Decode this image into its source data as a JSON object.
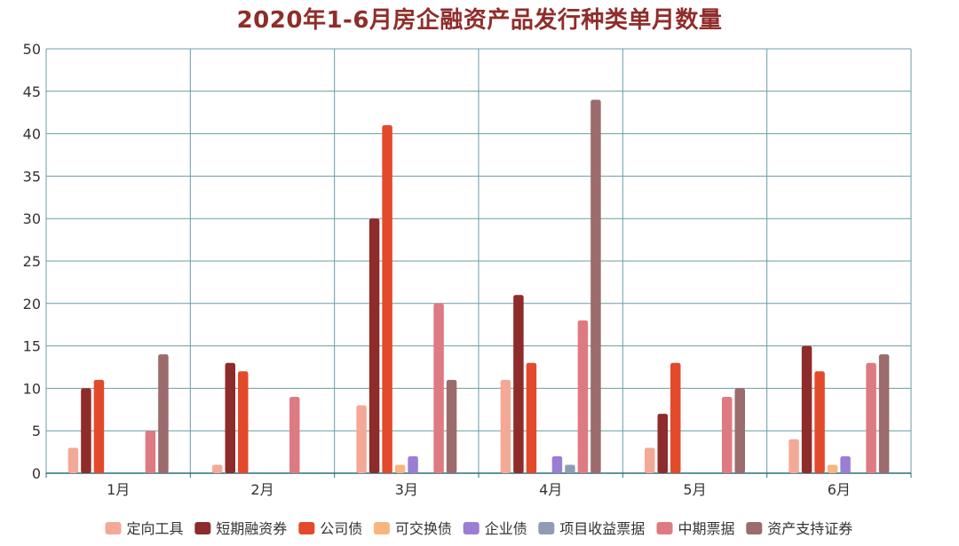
{
  "chart_data": {
    "type": "bar",
    "title": "2020年1-6月房企融资产品发行种类单月数量",
    "xlabel": "",
    "ylabel": "",
    "ylim": [
      0,
      50
    ],
    "yticks": [
      0,
      5,
      10,
      15,
      20,
      25,
      30,
      35,
      40,
      45,
      50
    ],
    "categories": [
      "1月",
      "2月",
      "3月",
      "4月",
      "5月",
      "6月"
    ],
    "grid": true,
    "legend_position": "bottom",
    "series": [
      {
        "name": "定向工具",
        "color": "#f4a996",
        "values": [
          3,
          1,
          8,
          11,
          3,
          4
        ]
      },
      {
        "name": "短期融资券",
        "color": "#8e2b2b",
        "values": [
          10,
          13,
          30,
          21,
          7,
          15
        ]
      },
      {
        "name": "公司债",
        "color": "#e34a2b",
        "values": [
          11,
          12,
          41,
          13,
          13,
          12
        ]
      },
      {
        "name": "可交换债",
        "color": "#f9b57f",
        "values": [
          0,
          0,
          1,
          0,
          0,
          1
        ]
      },
      {
        "name": "企业债",
        "color": "#9b7ed3",
        "values": [
          0,
          0,
          2,
          2,
          0,
          2
        ]
      },
      {
        "name": "项目收益票据",
        "color": "#8f9cb3",
        "values": [
          0,
          0,
          0,
          1,
          0,
          0
        ]
      },
      {
        "name": "中期票据",
        "color": "#de7a82",
        "values": [
          5,
          9,
          20,
          18,
          9,
          13
        ]
      },
      {
        "name": "资产支持证券",
        "color": "#9c6b6b",
        "values": [
          14,
          0,
          11,
          44,
          10,
          14
        ]
      }
    ]
  }
}
